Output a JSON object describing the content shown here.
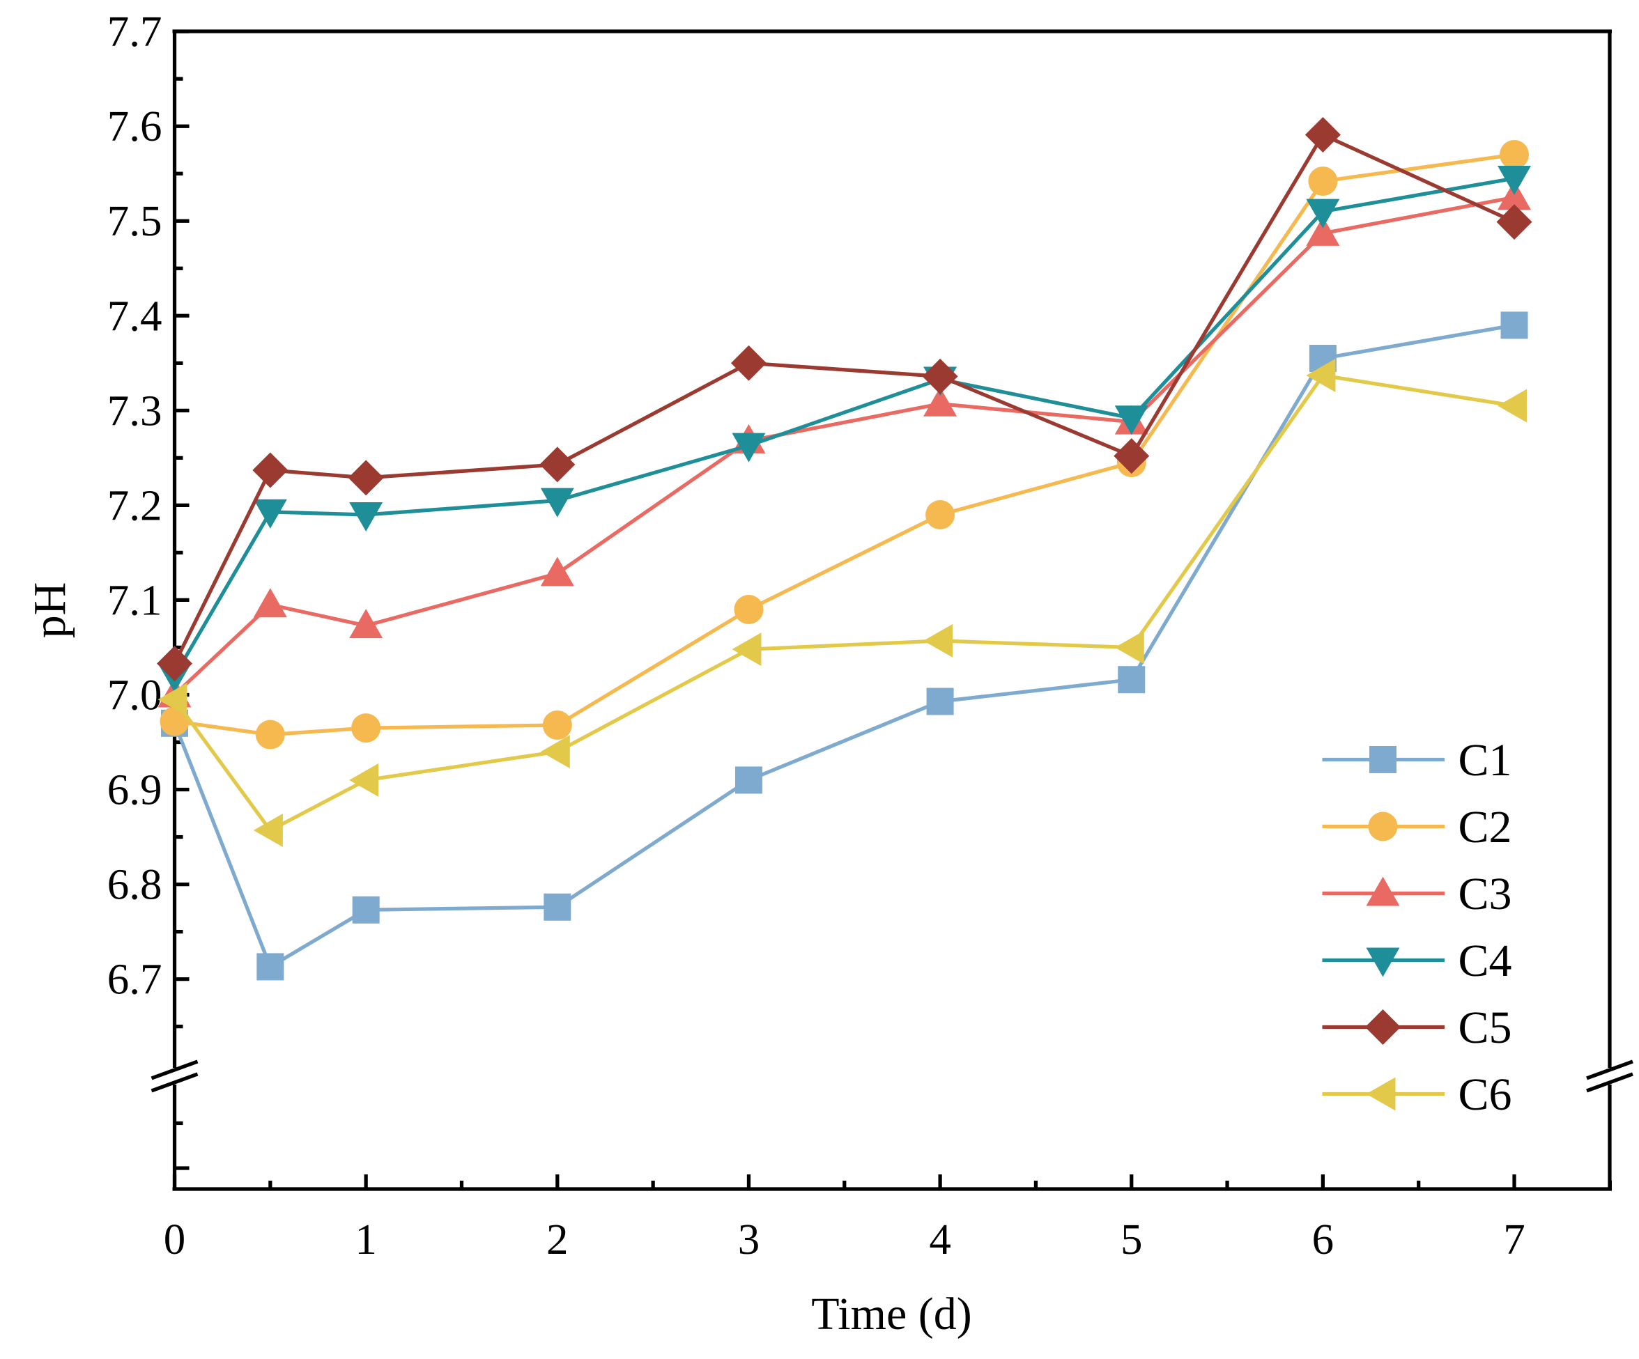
{
  "chart_data": {
    "type": "line",
    "title": "",
    "xlabel": "Time (d)",
    "ylabel": "pH",
    "xlim": [
      0,
      7.5
    ],
    "ylim": [
      6.6,
      7.7
    ],
    "y_axis_break": true,
    "x_ticks": [
      "0",
      "1",
      "2",
      "3",
      "4",
      "5",
      "6",
      "7"
    ],
    "x_tick_values": [
      0,
      1,
      2,
      3,
      4,
      5,
      6,
      7
    ],
    "y_ticks": [
      "6.7",
      "6.8",
      "6.9",
      "7.0",
      "7.1",
      "7.2",
      "7.3",
      "7.4",
      "7.5",
      "7.6",
      "7.7"
    ],
    "y_tick_values": [
      6.7,
      6.8,
      6.9,
      7.0,
      7.1,
      7.2,
      7.3,
      7.4,
      7.5,
      7.6,
      7.7
    ],
    "grid": false,
    "legend_position": "bottom-right",
    "x": [
      0,
      0.5,
      1,
      2,
      3,
      4,
      5,
      6,
      7
    ],
    "series": [
      {
        "name": "C1",
        "marker": "square",
        "color": "#7FAACF",
        "values": [
          6.97,
          6.713,
          6.773,
          6.776,
          6.91,
          6.993,
          7.016,
          7.355,
          7.39
        ]
      },
      {
        "name": "C2",
        "marker": "circle",
        "color": "#F5B94F",
        "values": [
          6.972,
          6.958,
          6.965,
          6.968,
          7.09,
          7.19,
          7.245,
          7.542,
          7.57
        ]
      },
      {
        "name": "C3",
        "marker": "triangle-up",
        "color": "#E96A62",
        "values": [
          7.0,
          7.095,
          7.073,
          7.128,
          7.268,
          7.307,
          7.288,
          7.487,
          7.525
        ]
      },
      {
        "name": "C4",
        "marker": "triangle-down",
        "color": "#1E8E99",
        "values": [
          7.02,
          7.193,
          7.19,
          7.205,
          7.263,
          7.333,
          7.292,
          7.51,
          7.545
        ]
      },
      {
        "name": "C5",
        "marker": "diamond",
        "color": "#9B3A30",
        "values": [
          7.033,
          7.237,
          7.229,
          7.243,
          7.35,
          7.336,
          7.252,
          7.591,
          7.499
        ]
      },
      {
        "name": "C6",
        "marker": "triangle-left",
        "color": "#E3C94A",
        "values": [
          6.995,
          6.857,
          6.91,
          6.94,
          7.048,
          7.057,
          7.05,
          7.337,
          7.305
        ]
      }
    ]
  }
}
